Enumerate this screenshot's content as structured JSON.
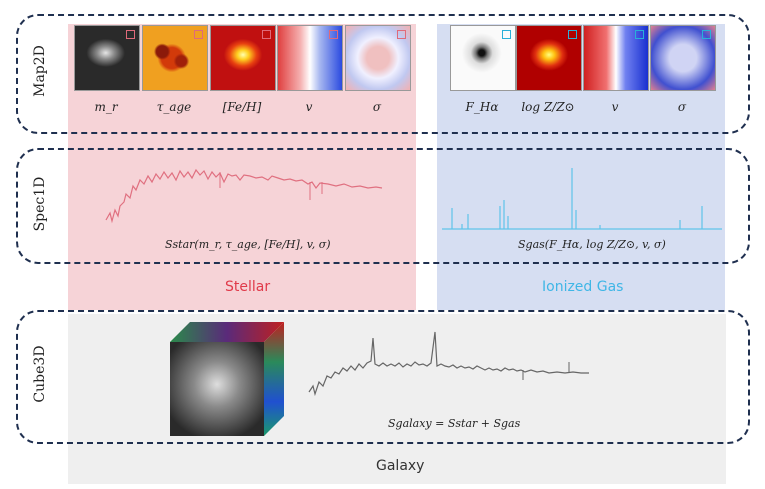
{
  "rows": {
    "map2d": "Map2D",
    "spec1d": "Spec1D",
    "cube3d": "Cube3D"
  },
  "stellar": {
    "title": "Stellar",
    "title_color": "#e03a4a",
    "map_labels": [
      "m_r",
      "τ_age",
      "[Fe/H]",
      "v",
      "σ"
    ],
    "formula": "𝑆star(m_r, τ_age, [Fe/H], v, σ)",
    "spec_color": "#e07080",
    "marker_color": "#e06a7a"
  },
  "gas": {
    "title": "Ionized Gas",
    "title_color": "#3fb6e6",
    "map_labels": [
      "F_Hα",
      "log Z/Z⊙",
      "v",
      "σ"
    ],
    "formula": "𝑆gas(F_Hα, log Z/Z⊙, v, σ)",
    "spec_color": "#5fc4ea",
    "marker_color": "#28b0d8"
  },
  "galaxy": {
    "title": "Galaxy",
    "formula": "𝑆galaxy = 𝑆star + 𝑆gas",
    "spec_color": "#666666"
  }
}
